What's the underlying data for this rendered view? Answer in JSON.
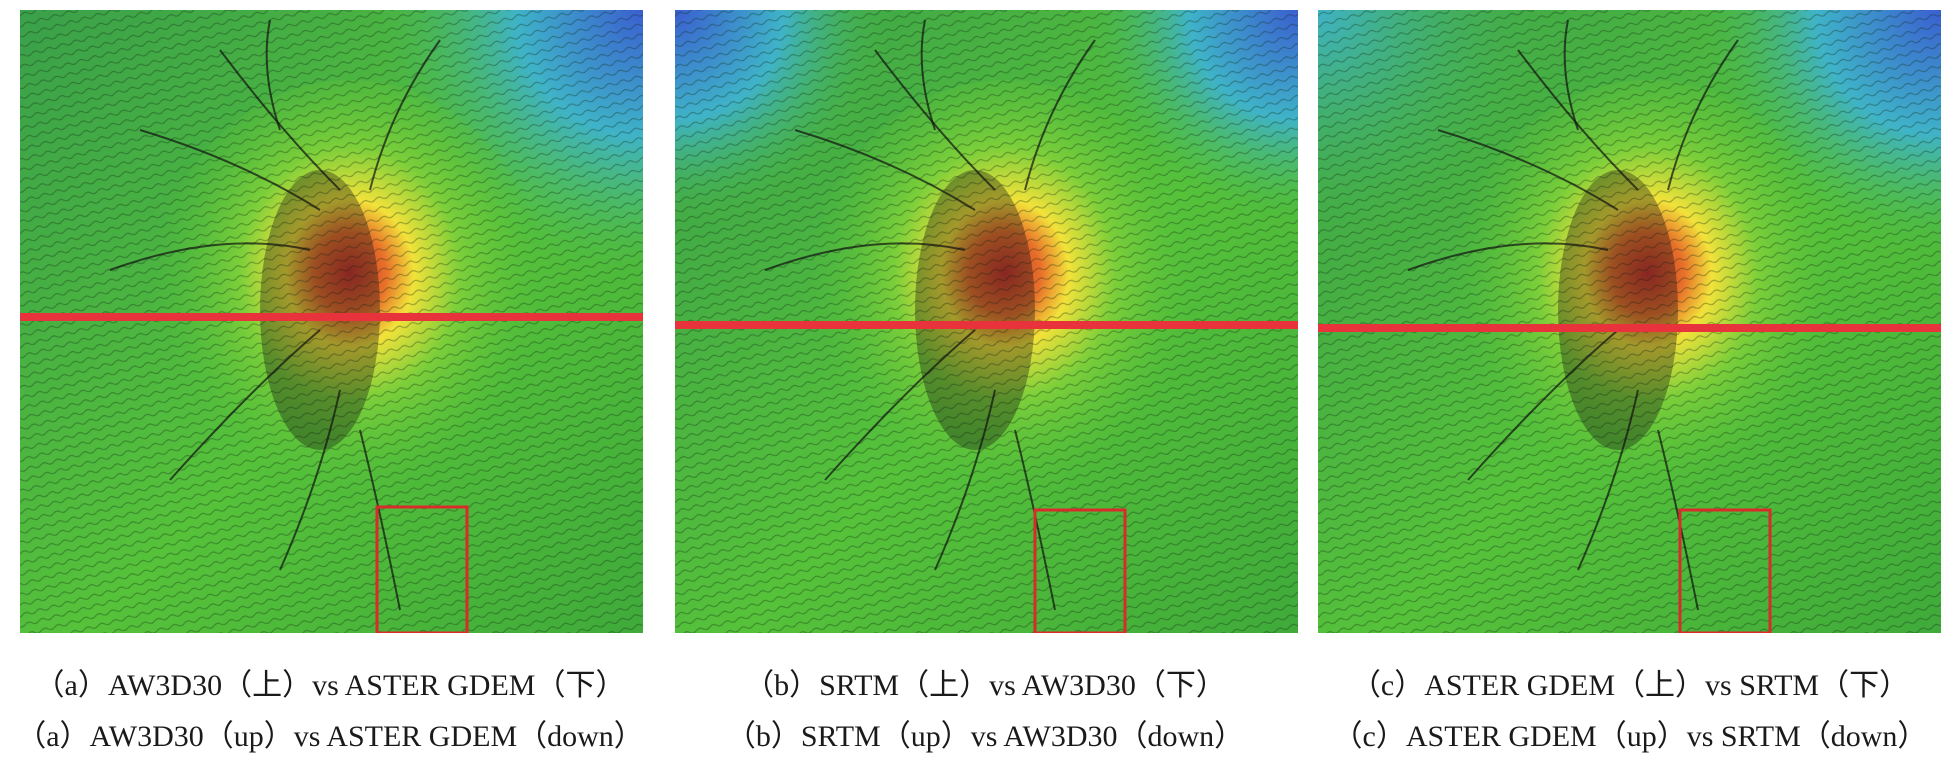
{
  "colors": {
    "profile_line": "#e8323c",
    "highlight_box": "#d92b2b",
    "high_elevation": "#c8322a",
    "mid_elevation": "#f2e23a",
    "low_elevation": "#4cbb3a",
    "lowest_elevation": "#3a5fd0"
  },
  "panels": [
    {
      "id": "a",
      "caption_zh": "（a）AW3D30（上）vs ASTER GDEM（下）",
      "caption_en": "（a）AW3D30（up）vs ASTER GDEM（down）"
    },
    {
      "id": "b",
      "caption_zh": "（b）SRTM（上）vs AW3D30（下）",
      "caption_en": "（b）SRTM（up）vs AW3D30（down）"
    },
    {
      "id": "c",
      "caption_zh": "（c）ASTER GDEM（上）vs SRTM（下）",
      "caption_en": "（c）ASTER GDEM（up）vs SRTM（down）"
    }
  ]
}
